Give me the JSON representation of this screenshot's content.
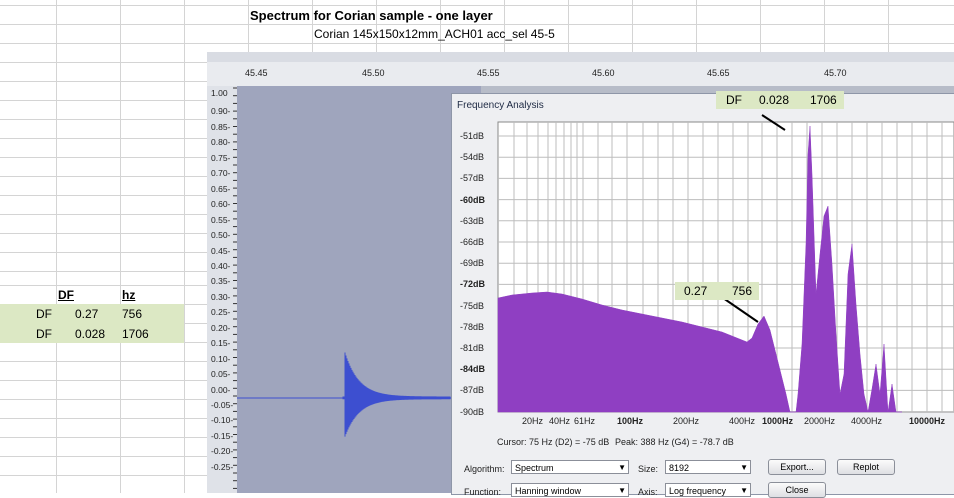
{
  "sheet": {
    "title": "Spectrum for Corian sample - one layer",
    "subtitle": "Corian 145x150x12mm_ACH01 acc_sel 45-5",
    "table_headers": [
      "DF",
      "hz"
    ],
    "table_rows": [
      {
        "label": "DF",
        "df": "0.27",
        "hz": "756"
      },
      {
        "label": "DF",
        "df": "0.028",
        "hz": "1706"
      }
    ]
  },
  "audacity": {
    "timeline": [
      "45.45",
      "45.50",
      "45.55",
      "45.60",
      "45.65",
      "45.70"
    ],
    "amplitude_scale": [
      "1.00",
      "0.90-",
      "0.85-",
      "0.80-",
      "0.75-",
      "0.70-",
      "0.65-",
      "0.60-",
      "0.55-",
      "0.50-",
      "0.45-",
      "0.40-",
      "0.35-",
      "0.30-",
      "0.25-",
      "0.20-",
      "0.15-",
      "0.10-",
      "0.05-",
      "0.00-",
      "-0.05-",
      "-0.10-",
      "-0.15-",
      "-0.20-",
      "-0.25-"
    ]
  },
  "freq_window": {
    "title": "Frequency Analysis",
    "db_labels": [
      "-51dB",
      "-54dB",
      "-57dB",
      "-60dB",
      "-63dB",
      "-66dB",
      "-69dB",
      "-72dB",
      "-75dB",
      "-78dB",
      "-81dB",
      "-84dB",
      "-87dB",
      "-90dB"
    ],
    "freq_labels": [
      "20Hz",
      "40Hz",
      "61Hz",
      "100Hz",
      "200Hz",
      "400Hz",
      "1000Hz",
      "2000Hz",
      "4000Hz",
      "10000Hz"
    ],
    "cursor_text": "Cursor: 75 Hz (D2) = -75 dB",
    "peak_text": "Peak: 388 Hz (G4) = -78.7 dB",
    "algorithm_label": "Algorithm:",
    "algorithm_value": "Spectrum",
    "size_label": "Size:",
    "size_value": "8192",
    "export_label": "Export...",
    "replot_label": "Replot",
    "function_label": "Function:",
    "function_value": "Hanning window",
    "axis_label": "Axis:",
    "axis_value": "Log frequency",
    "close_label": "Close"
  },
  "callouts": {
    "top": {
      "label": "DF",
      "df": "0.028",
      "hz": "1706"
    },
    "mid": {
      "df": "0.27",
      "hz": "756"
    }
  },
  "colors": {
    "spectrum_fill": "#8f3fc2",
    "annotation_bg": "#dce8c4",
    "waveform": "#3d4fd0"
  }
}
